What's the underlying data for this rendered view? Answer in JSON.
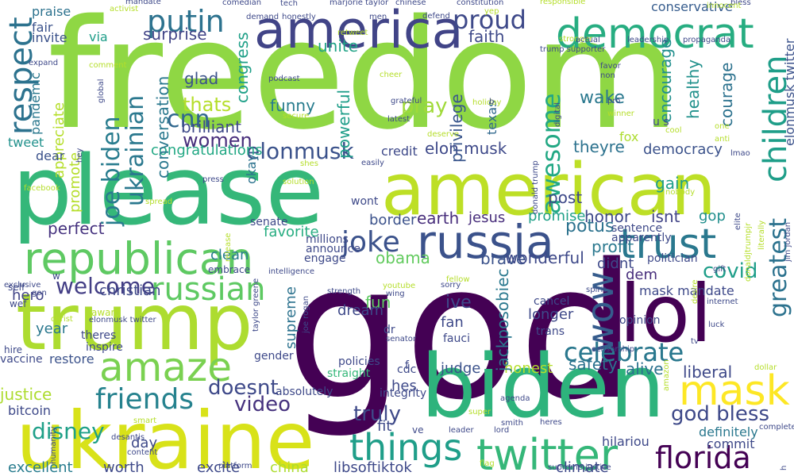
{
  "word_cloud": {
    "words": [
      {
        "text": "freedom",
        "color": "#8fd744"
      },
      {
        "text": "god",
        "color": "#440154"
      },
      {
        "text": "please",
        "color": "#35b779"
      },
      {
        "text": "american",
        "color": "#bddf26"
      },
      {
        "text": "biden",
        "color": "#2eb37c"
      },
      {
        "text": "trump",
        "color": "#addc30"
      },
      {
        "text": "ukraine",
        "color": "#d8e219"
      },
      {
        "text": "lol",
        "color": "#440154"
      },
      {
        "text": "america",
        "color": "#414487"
      },
      {
        "text": "democrat",
        "color": "#27ad81"
      },
      {
        "text": "russia",
        "color": "#3b528b"
      },
      {
        "text": "trust",
        "color": "#2a788e"
      },
      {
        "text": "republican",
        "color": "#5ec962"
      },
      {
        "text": "twitter",
        "color": "#35b779"
      },
      {
        "text": "things",
        "color": "#1f9e89"
      },
      {
        "text": "amaze",
        "color": "#7ad151"
      },
      {
        "text": "mask",
        "color": "#fde725"
      },
      {
        "text": "russian",
        "color": "#5ec962"
      },
      {
        "text": "respect",
        "color": "#2c728e"
      },
      {
        "text": "children",
        "color": "#1f9e89"
      },
      {
        "text": "joke",
        "color": "#3b528b"
      },
      {
        "text": "wow",
        "color": "#365c8d"
      },
      {
        "text": "florida",
        "color": "#440154"
      },
      {
        "text": "celebrate",
        "color": "#2a788e"
      },
      {
        "text": "putin",
        "color": "#2c728e"
      },
      {
        "text": "proud",
        "color": "#3e4989"
      },
      {
        "text": "friends",
        "color": "#26828e"
      },
      {
        "text": "joe biden",
        "color": "#287c8e"
      },
      {
        "text": "cnn",
        "color": "#31688e"
      },
      {
        "text": "greatest",
        "color": "#2c728e"
      },
      {
        "text": "god bless",
        "color": "#3e4989"
      },
      {
        "text": "ukrainian",
        "color": "#2a788e"
      },
      {
        "text": "disney",
        "color": "#1fa088"
      },
      {
        "text": "welcome",
        "color": "#433e85"
      },
      {
        "text": "truly",
        "color": "#3e4989"
      },
      {
        "text": "doesnt",
        "color": "#3e4989"
      },
      {
        "text": "video",
        "color": "#46327e"
      },
      {
        "text": "awesome",
        "color": "#22a884"
      },
      {
        "text": "elonmusk",
        "color": "#3b528b"
      },
      {
        "text": "covid",
        "color": "#1f9e89"
      },
      {
        "text": "women",
        "color": "#472d7b"
      },
      {
        "text": "thats",
        "color": "#b5de2b"
      },
      {
        "text": "pray",
        "color": "#a0da39"
      },
      {
        "text": "wake",
        "color": "#2a788e"
      },
      {
        "text": "perfect",
        "color": "#46337f"
      },
      {
        "text": "potus",
        "color": "#2c728e"
      },
      {
        "text": "celebrate",
        "color": "#2a788e"
      },
      {
        "text": "democracy",
        "color": "#3b528b"
      },
      {
        "text": "congratulations",
        "color": "#22a884"
      },
      {
        "text": "elon musk",
        "color": "#3e4989"
      },
      {
        "text": "faith",
        "color": "#3e4989"
      },
      {
        "text": "surprise",
        "color": "#414487"
      },
      {
        "text": "congress",
        "color": "#1fa088"
      },
      {
        "text": "conversation",
        "color": "#2a788e"
      },
      {
        "text": "funny",
        "color": "#287c8e"
      },
      {
        "text": "glad",
        "color": "#3b528b"
      },
      {
        "text": "brilliant",
        "color": "#3e4989"
      },
      {
        "text": "unite",
        "color": "#20a386"
      },
      {
        "text": "powerful",
        "color": "#1f9e89"
      },
      {
        "text": "privilege",
        "color": "#39568c"
      },
      {
        "text": "texas",
        "color": "#31688e"
      },
      {
        "text": "encourage",
        "color": "#218f8d"
      },
      {
        "text": "healthy",
        "color": "#21918c"
      },
      {
        "text": "courage",
        "color": "#2c728e"
      },
      {
        "text": "elonmusk twitter",
        "color": "#3b528b"
      },
      {
        "text": "conservative",
        "color": "#365c8d"
      },
      {
        "text": "theyre",
        "color": "#2c728e"
      },
      {
        "text": "fox",
        "color": "#addc30"
      },
      {
        "text": "gain",
        "color": "#1f9e89"
      },
      {
        "text": "gop",
        "color": "#218f8d"
      },
      {
        "text": "isnt",
        "color": "#414487"
      },
      {
        "text": "honor",
        "color": "#3e4989"
      },
      {
        "text": "promise",
        "color": "#1fa088"
      },
      {
        "text": "post",
        "color": "#3e4989"
      },
      {
        "text": "jesus",
        "color": "#472d7b"
      },
      {
        "text": "earth",
        "color": "#472d7b"
      },
      {
        "text": "border",
        "color": "#3b528b"
      },
      {
        "text": "obama",
        "color": "#63cb5f"
      },
      {
        "text": "brave",
        "color": "#3b528b"
      },
      {
        "text": "wonderful",
        "color": "#3e4989"
      },
      {
        "text": "profit",
        "color": "#2a788e"
      },
      {
        "text": "didnt",
        "color": "#3e4989"
      },
      {
        "text": "dem",
        "color": "#472d7b"
      },
      {
        "text": "mask mandate",
        "color": "#3e4989"
      },
      {
        "text": "liberal",
        "color": "#3e4989"
      },
      {
        "text": "alive",
        "color": "#2c728e"
      },
      {
        "text": "safety",
        "color": "#2c728e"
      },
      {
        "text": "judge",
        "color": "#3b528b"
      },
      {
        "text": "honest",
        "color": "#b5de2b"
      },
      {
        "text": "jackposobiec",
        "color": "#2a788e"
      },
      {
        "text": "ive",
        "color": "#3e4989"
      },
      {
        "text": "longer",
        "color": "#3e4989"
      },
      {
        "text": "fan",
        "color": "#3e4989"
      },
      {
        "text": "fun",
        "color": "#5ec962"
      },
      {
        "text": "dream",
        "color": "#3e4989"
      },
      {
        "text": "supreme",
        "color": "#2c728e"
      },
      {
        "text": "year",
        "color": "#2a788e"
      },
      {
        "text": "hero",
        "color": "#414487"
      },
      {
        "text": "christian",
        "color": "#3e4989"
      },
      {
        "text": "clean",
        "color": "#287c8e"
      },
      {
        "text": "favorite",
        "color": "#27ad81"
      },
      {
        "text": "justice",
        "color": "#addc30"
      },
      {
        "text": "restore",
        "color": "#3b528b"
      },
      {
        "text": "bitcoin",
        "color": "#3e4989"
      },
      {
        "text": "excellent",
        "color": "#287c8e"
      },
      {
        "text": "worth",
        "color": "#3e4989"
      },
      {
        "text": "excite",
        "color": "#3e4989"
      },
      {
        "text": "china",
        "color": "#addc30"
      },
      {
        "text": "libsoftiktok",
        "color": "#3e4989"
      },
      {
        "text": "climate",
        "color": "#3e4989"
      },
      {
        "text": "day",
        "color": "#3e4989"
      },
      {
        "text": "fit",
        "color": "#3e4989"
      },
      {
        "text": "hes",
        "color": "#3e4989"
      },
      {
        "text": "definitely",
        "color": "#2a788e"
      },
      {
        "text": "commit",
        "color": "#3e4989"
      },
      {
        "text": "hilariou",
        "color": "#3e4989"
      },
      {
        "text": "promote",
        "color": "#b5de2b"
      },
      {
        "text": "appreciate",
        "color": "#b5de2b"
      },
      {
        "text": "pandemic",
        "color": "#2a788e"
      },
      {
        "text": "tweet",
        "color": "#21918c"
      },
      {
        "text": "dear",
        "color": "#3b528b"
      },
      {
        "text": "fair",
        "color": "#3b528b"
      },
      {
        "text": "invite",
        "color": "#3b528b"
      },
      {
        "text": "praise",
        "color": "#2c728e"
      },
      {
        "text": "via",
        "color": "#1f9e89"
      },
      {
        "text": "credit",
        "color": "#3e4989"
      },
      {
        "text": "okay",
        "color": "#2c728e"
      },
      {
        "text": "wont",
        "color": "#3e4989"
      },
      {
        "text": "senate",
        "color": "#3e4989"
      },
      {
        "text": "millions",
        "color": "#3e4989"
      },
      {
        "text": "announce",
        "color": "#3e4989"
      },
      {
        "text": "engage",
        "color": "#3e4989"
      },
      {
        "text": "sentence",
        "color": "#3e4989"
      },
      {
        "text": "apparently",
        "color": "#3e4989"
      },
      {
        "text": "politician",
        "color": "#3e4989"
      },
      {
        "text": "opinion",
        "color": "#3e4989"
      },
      {
        "text": "cancel",
        "color": "#3e4989"
      },
      {
        "text": "trans",
        "color": "#3e4989"
      },
      {
        "text": "fauci",
        "color": "#3e4989"
      },
      {
        "text": "cdc",
        "color": "#3e4989"
      },
      {
        "text": "integrity",
        "color": "#3e4989"
      },
      {
        "text": "policies",
        "color": "#3e4989"
      },
      {
        "text": "straight",
        "color": "#35b779"
      },
      {
        "text": "absolutely",
        "color": "#3e4989"
      },
      {
        "text": "gender",
        "color": "#3e4989"
      },
      {
        "text": "inspire",
        "color": "#3e4989"
      },
      {
        "text": "theres",
        "color": "#3e4989"
      },
      {
        "text": "vaccine",
        "color": "#3e4989"
      },
      {
        "text": "hire",
        "color": "#3e4989"
      },
      {
        "text": "wef",
        "color": "#3e4989"
      },
      {
        "text": "self",
        "color": "#3e4989"
      },
      {
        "text": "exclusive",
        "color": "#3e4989"
      },
      {
        "text": "gon",
        "color": "#3e4989"
      },
      {
        "text": "embrace",
        "color": "#3e4989"
      },
      {
        "text": "intelligence",
        "color": "#3e4989"
      },
      {
        "text": "elonmusk twitter",
        "color": "#3e4989"
      },
      {
        "text": "strength",
        "color": "#3e4989"
      },
      {
        "text": "youtube",
        "color": "#b5de2b"
      },
      {
        "text": "wing",
        "color": "#3e4989"
      },
      {
        "text": "sorry",
        "color": "#3e4989"
      },
      {
        "text": "spirit",
        "color": "#3e4989"
      },
      {
        "text": "gift",
        "color": "#3e4989"
      },
      {
        "text": "luck",
        "color": "#3e4989"
      },
      {
        "text": "internet",
        "color": "#3e4989"
      },
      {
        "text": "tv",
        "color": "#3e4989"
      },
      {
        "text": "censorship",
        "color": "#3e4989"
      },
      {
        "text": "agenda",
        "color": "#3e4989"
      },
      {
        "text": "heres",
        "color": "#3e4989"
      },
      {
        "text": "smith",
        "color": "#3e4989"
      },
      {
        "text": "super",
        "color": "#b5de2b"
      },
      {
        "text": "leader",
        "color": "#3e4989"
      },
      {
        "text": "lord",
        "color": "#3e4989"
      },
      {
        "text": "flag",
        "color": "#b5de2b"
      },
      {
        "text": "supreme justice",
        "color": "#3e4989"
      },
      {
        "text": "platform",
        "color": "#3e4989"
      },
      {
        "text": "content",
        "color": "#3e4989"
      },
      {
        "text": "humanity",
        "color": "#3e4989"
      },
      {
        "text": "desantis",
        "color": "#3e4989"
      },
      {
        "text": "smart",
        "color": "#b5de2b"
      },
      {
        "text": "comedian",
        "color": "#3e4989"
      },
      {
        "text": "marjorie taylor",
        "color": "#3e4989"
      },
      {
        "text": "chinese",
        "color": "#3e4989"
      },
      {
        "text": "constitution",
        "color": "#3e4989"
      },
      {
        "text": "bless",
        "color": "#3e4989"
      },
      {
        "text": "innocent",
        "color": "#b5de2b"
      },
      {
        "text": "mandate",
        "color": "#3e4989"
      },
      {
        "text": "responsible",
        "color": "#b5de2b"
      },
      {
        "text": "yep",
        "color": "#b5de2b"
      },
      {
        "text": "defend",
        "color": "#3e4989"
      },
      {
        "text": "men",
        "color": "#3e4989"
      },
      {
        "text": "demand",
        "color": "#3e4989"
      },
      {
        "text": "honestly",
        "color": "#3e4989"
      },
      {
        "text": "retweet",
        "color": "#b5de2b"
      },
      {
        "text": "activist",
        "color": "#b5de2b"
      },
      {
        "text": "expand",
        "color": "#3e4989"
      },
      {
        "text": "comment",
        "color": "#b5de2b"
      },
      {
        "text": "global",
        "color": "#3e4989"
      },
      {
        "text": "podcast",
        "color": "#3e4989"
      },
      {
        "text": "cheer",
        "color": "#b5de2b"
      },
      {
        "text": "grateful",
        "color": "#3e4989"
      },
      {
        "text": "latest",
        "color": "#3e4989"
      },
      {
        "text": "deserve",
        "color": "#b5de2b"
      },
      {
        "text": "holiday",
        "color": "#b5de2b"
      },
      {
        "text": "b",
        "color": "#3e4989"
      },
      {
        "text": "tech",
        "color": "#3e4989"
      },
      {
        "text": "secure",
        "color": "#b5de2b"
      },
      {
        "text": "shes",
        "color": "#b5de2b"
      },
      {
        "text": "easily",
        "color": "#3e4989"
      },
      {
        "text": "press",
        "color": "#3e4989"
      },
      {
        "text": "solution",
        "color": "#b5de2b"
      },
      {
        "text": "spread",
        "color": "#b5de2b"
      },
      {
        "text": "facebook",
        "color": "#b5de2b"
      },
      {
        "text": "hey",
        "color": "#3e4989"
      },
      {
        "text": "release",
        "color": "#b5de2b"
      },
      {
        "text": "donald trump",
        "color": "#3e4989"
      },
      {
        "text": "joe rogan",
        "color": "#3e4989"
      },
      {
        "text": "taylor greene",
        "color": "#3e4989"
      },
      {
        "text": "senator",
        "color": "#3e4989"
      },
      {
        "text": "christ",
        "color": "#b5de2b"
      },
      {
        "text": "stronger",
        "color": "#b5de2b"
      },
      {
        "text": "actual",
        "color": "#3e4989"
      },
      {
        "text": "leadership",
        "color": "#3e4989"
      },
      {
        "text": "propaganda",
        "color": "#3e4989"
      },
      {
        "text": "trump supporter",
        "color": "#3e4989"
      },
      {
        "text": "favor",
        "color": "#3e4989"
      },
      {
        "text": "non",
        "color": "#3e4989"
      },
      {
        "text": "pro",
        "color": "#3e4989"
      },
      {
        "text": "winner",
        "color": "#b5de2b"
      },
      {
        "text": "digital",
        "color": "#3e4989"
      },
      {
        "text": "cool",
        "color": "#b5de2b"
      },
      {
        "text": "one",
        "color": "#b5de2b"
      },
      {
        "text": "anti",
        "color": "#b5de2b"
      },
      {
        "text": "lmao",
        "color": "#3e4989"
      },
      {
        "text": "nobody",
        "color": "#b5de2b"
      },
      {
        "text": "elite",
        "color": "#3e4989"
      },
      {
        "text": "literally",
        "color": "#b5de2b"
      },
      {
        "text": "jim jordan",
        "color": "#3e4989"
      },
      {
        "text": "donaldjtrumpjr",
        "color": "#b5de2b"
      },
      {
        "text": "desire",
        "color": "#b5de2b"
      },
      {
        "text": "amazon",
        "color": "#b5de2b"
      },
      {
        "text": "dollar",
        "color": "#b5de2b"
      },
      {
        "text": "completely",
        "color": "#3e4989"
      },
      {
        "text": "h",
        "color": "#3e4989"
      },
      {
        "text": "fellow",
        "color": "#b5de2b"
      },
      {
        "text": "award",
        "color": "#b5de2b"
      },
      {
        "text": "u s",
        "color": "#3e4989"
      },
      {
        "text": "w",
        "color": "#3e4989"
      },
      {
        "text": "f",
        "color": "#3e4989"
      },
      {
        "text": "dr",
        "color": "#3e4989"
      },
      {
        "text": "ve",
        "color": "#3e4989"
      },
      {
        "text": "d",
        "color": "#3e4989"
      }
    ]
  }
}
